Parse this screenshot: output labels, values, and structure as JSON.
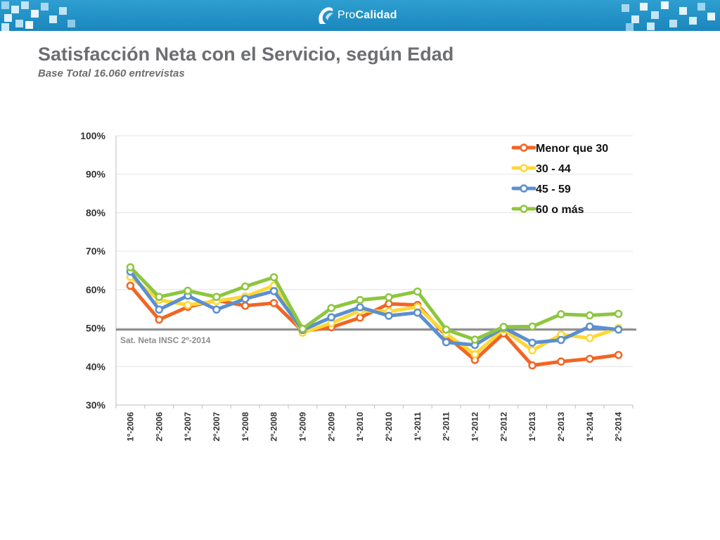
{
  "header": {
    "logo_prefix": "Pro",
    "logo_name": "Calidad"
  },
  "page": {
    "title": "Satisfacción Neta con el Servicio, según Edad",
    "subtitle": "Base Total 16.060 entrevistas"
  },
  "colors": {
    "banner": "#1e8fc6",
    "title_text": "#6d6e71",
    "reference_line": "#8c8c8c"
  },
  "chart_data": {
    "type": "line",
    "title": "Satisfacción Neta con el Servicio, según Edad",
    "xlabel": "",
    "ylabel": "",
    "ylim": [
      30,
      100
    ],
    "yticks": [
      30,
      40,
      50,
      60,
      70,
      80,
      90,
      100
    ],
    "ytick_suffix": "%",
    "grid": true,
    "legend_position": "top-right",
    "categories": [
      "1º-2006",
      "2º-2006",
      "1º-2007",
      "2º-2007",
      "1º-2008",
      "2º-2008",
      "1º-2009",
      "2º-2009",
      "1º-2010",
      "2º-2010",
      "1º-2011",
      "2º-2011",
      "1º-2012",
      "2º-2012",
      "1º-2013",
      "2º-2013",
      "1º-2014",
      "2º-2014"
    ],
    "series": [
      {
        "name": "Menor que 30",
        "color": "#f26522",
        "values": [
          61,
          52.2,
          55.5,
          57.2,
          55.8,
          56.5,
          49.2,
          50.2,
          52.7,
          56.3,
          56,
          48,
          41.7,
          48.6,
          40.3,
          41.3,
          42,
          43
        ]
      },
      {
        "name": "30 - 44",
        "color": "#fdd835",
        "values": [
          63.3,
          57.3,
          56,
          57,
          58.2,
          61,
          48.8,
          51.3,
          54.5,
          54.3,
          55.5,
          48.5,
          43.2,
          49.7,
          44.2,
          48.3,
          47.4,
          50
        ]
      },
      {
        "name": "45 - 59",
        "color": "#5b8fd0",
        "values": [
          64.7,
          54.8,
          58.4,
          54.8,
          57.6,
          59.6,
          49.5,
          52.8,
          55.4,
          53.2,
          54,
          46.3,
          45.6,
          50.1,
          46.2,
          46.9,
          50.4,
          49.6
        ]
      },
      {
        "name": "60 o más",
        "color": "#8dc63f",
        "values": [
          65.8,
          58.1,
          59.7,
          58.1,
          60.8,
          63.2,
          49.8,
          55.2,
          57.3,
          58,
          59.5,
          49.6,
          47,
          50.3,
          50.4,
          53.6,
          53.3,
          53.7
        ]
      }
    ],
    "reference_line": {
      "value": 49.6,
      "label": "Sat. Neta INSC 2º-2014"
    }
  }
}
